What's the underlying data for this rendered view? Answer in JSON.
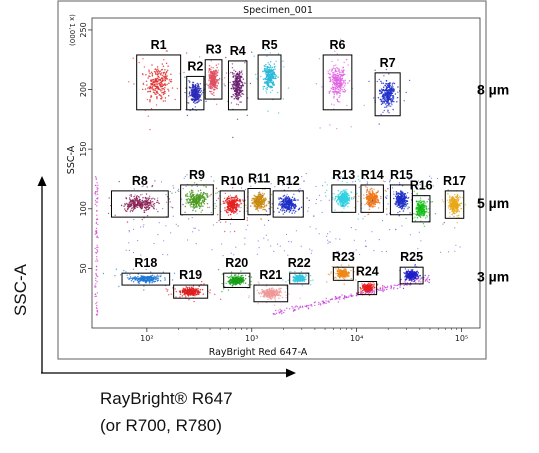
{
  "chart_data": {
    "type": "scatter",
    "title": "Specimen_001",
    "xlabel": "RayBright Red 647-A",
    "ylabel": "SSC-A",
    "y_multiplier_label": "(x 1,000)",
    "x_scale": "log",
    "xlim": [
      30,
      150000
    ],
    "ylim": [
      0,
      260
    ],
    "x_ticks": [
      {
        "value": 100,
        "label": "10²"
      },
      {
        "value": 1000,
        "label": "10³"
      },
      {
        "value": 10000,
        "label": "10⁴"
      },
      {
        "value": 100000,
        "label": "10⁵"
      }
    ],
    "y_ticks": [
      50,
      100,
      150,
      200,
      250
    ],
    "regions": [
      {
        "name": "R1",
        "x_range": [
          80,
          210
        ],
        "y_range": [
          183,
          229
        ],
        "color": "#e03030",
        "label_pos": "above"
      },
      {
        "name": "R2",
        "x_range": [
          240,
          350
        ],
        "y_range": [
          183,
          211
        ],
        "color": "#2a2ab8",
        "label_pos": "above"
      },
      {
        "name": "R3",
        "x_range": [
          360,
          520
        ],
        "y_range": [
          192,
          225
        ],
        "color": "#e05060",
        "label_pos": "above"
      },
      {
        "name": "R4",
        "x_range": [
          600,
          900
        ],
        "y_range": [
          183,
          224
        ],
        "color": "#6a1e6e",
        "label_pos": "above"
      },
      {
        "name": "R5",
        "x_range": [
          1150,
          1900
        ],
        "y_range": [
          192,
          229
        ],
        "color": "#28b8d8",
        "label_pos": "above"
      },
      {
        "name": "R6",
        "x_range": [
          4800,
          9000
        ],
        "y_range": [
          183,
          229
        ],
        "color": "#e060e0",
        "label_pos": "above"
      },
      {
        "name": "R7",
        "x_range": [
          15000,
          26000
        ],
        "y_range": [
          178,
          214
        ],
        "color": "#1e2ec8",
        "label_pos": "above"
      },
      {
        "name": "R8",
        "x_range": [
          46,
          160
        ],
        "y_range": [
          93,
          115
        ],
        "color": "#8a1e52",
        "label_pos": "above"
      },
      {
        "name": "R9",
        "x_range": [
          210,
          430
        ],
        "y_range": [
          95,
          120
        ],
        "color": "#4a9a1e",
        "label_pos": "above"
      },
      {
        "name": "R10",
        "x_range": [
          500,
          850
        ],
        "y_range": [
          91,
          115
        ],
        "color": "#e81e1e",
        "label_pos": "above"
      },
      {
        "name": "R11",
        "x_range": [
          920,
          1500
        ],
        "y_range": [
          95,
          117
        ],
        "color": "#c88a0e",
        "label_pos": "above"
      },
      {
        "name": "R12",
        "x_range": [
          1600,
          3100
        ],
        "y_range": [
          93,
          115
        ],
        "color": "#1e2ec8",
        "label_pos": "above"
      },
      {
        "name": "R13",
        "x_range": [
          5800,
          9800
        ],
        "y_range": [
          97,
          120
        ],
        "color": "#30d0e0",
        "label_pos": "above"
      },
      {
        "name": "R14",
        "x_range": [
          11000,
          18000
        ],
        "y_range": [
          97,
          120
        ],
        "color": "#f07818",
        "label_pos": "above"
      },
      {
        "name": "R15",
        "x_range": [
          21000,
          34000
        ],
        "y_range": [
          95,
          120
        ],
        "color": "#1e2ec8",
        "label_pos": "above"
      },
      {
        "name": "R16",
        "x_range": [
          34000,
          50000
        ],
        "y_range": [
          89,
          111
        ],
        "color": "#18c018",
        "label_pos": "above"
      },
      {
        "name": "R17",
        "x_range": [
          70000,
          105000
        ],
        "y_range": [
          92,
          115
        ],
        "color": "#e8a818",
        "label_pos": "above"
      },
      {
        "name": "R18",
        "x_range": [
          58,
          165
        ],
        "y_range": [
          36,
          46
        ],
        "color": "#1e78d8",
        "label_pos": "above"
      },
      {
        "name": "R19",
        "x_range": [
          180,
          380
        ],
        "y_range": [
          25,
          36
        ],
        "color": "#e01e1e",
        "label_pos": "above"
      },
      {
        "name": "R20",
        "x_range": [
          540,
          960
        ],
        "y_range": [
          34,
          46
        ],
        "color": "#18a018",
        "label_pos": "above"
      },
      {
        "name": "R21",
        "x_range": [
          1050,
          2200
        ],
        "y_range": [
          22,
          36
        ],
        "color": "#f09898",
        "label_pos": "above"
      },
      {
        "name": "R22",
        "x_range": [
          2300,
          3500
        ],
        "y_range": [
          37,
          46
        ],
        "color": "#30c8e0",
        "label_pos": "above"
      },
      {
        "name": "R23",
        "x_range": [
          6000,
          9300
        ],
        "y_range": [
          40,
          51
        ],
        "color": "#f08818",
        "label_pos": "above"
      },
      {
        "name": "R24",
        "x_range": [
          10300,
          15500
        ],
        "y_range": [
          28,
          39
        ],
        "color": "#e81e1e",
        "label_pos": "above"
      },
      {
        "name": "R25",
        "x_range": [
          26000,
          43000
        ],
        "y_range": [
          37,
          51
        ],
        "color": "#1e1ec8",
        "label_pos": "above"
      }
    ],
    "size_labels": [
      {
        "text": "8 µm",
        "y": 200
      },
      {
        "text": "5 µm",
        "y": 105
      },
      {
        "text": "3 µm",
        "y": 43
      }
    ]
  },
  "outer_axes": {
    "y_label": "SSC-A",
    "x_label_line1": "RayBright® R647",
    "x_label_line2": "(or R700, R780)"
  }
}
